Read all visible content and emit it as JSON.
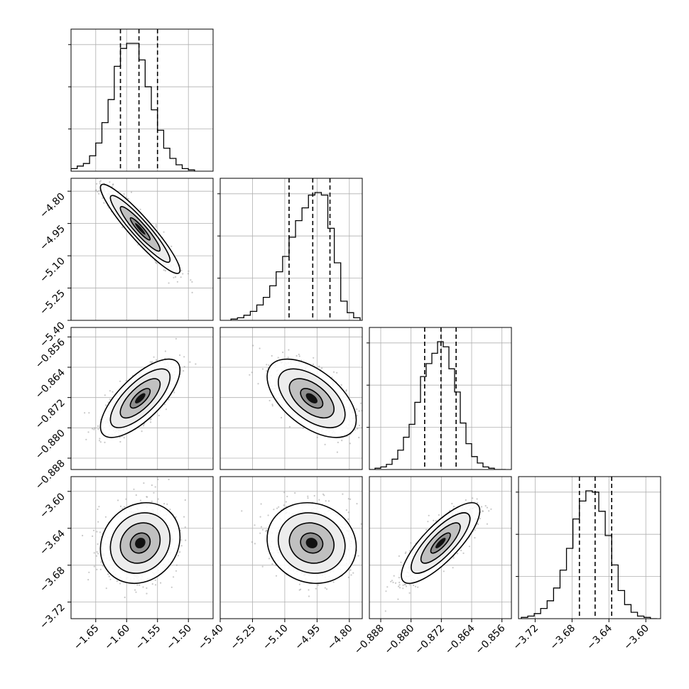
{
  "chart_data": {
    "type": "corner",
    "dims": 4,
    "title": "",
    "params": [
      {
        "range": [
          -1.69,
          -1.46
        ],
        "quantiles": [
          -1.61,
          -1.58,
          -1.55
        ],
        "ticks": [
          -1.65,
          -1.6,
          -1.55,
          -1.5
        ],
        "tick_labels": [
          "−1.65",
          "−1.60",
          "−1.55",
          "−1.50"
        ],
        "hist_bins": [
          -1.69,
          -1.68,
          -1.67,
          -1.66,
          -1.65,
          -1.64,
          -1.63,
          -1.62,
          -1.61,
          -1.6,
          -1.59,
          -1.58,
          -1.57,
          -1.56,
          -1.55,
          -1.54,
          -1.53,
          -1.52,
          -1.51,
          -1.5,
          -1.49
        ],
        "hist_counts": [
          0.02,
          0.04,
          0.06,
          0.12,
          0.22,
          0.38,
          0.56,
          0.82,
          0.96,
          1.0,
          1.0,
          0.87,
          0.66,
          0.48,
          0.32,
          0.18,
          0.1,
          0.05,
          0.02,
          0.01
        ],
        "hist_yticks": [
          0.33,
          0.66,
          0.99
        ]
      },
      {
        "range": [
          -5.4,
          -4.74
        ],
        "quantiles": [
          -5.08,
          -4.97,
          -4.89
        ],
        "ticks": [
          -5.4,
          -5.25,
          -5.1,
          -4.95,
          -4.8
        ],
        "tick_labels": [
          "−5.40",
          "−5.25",
          "−5.10",
          "−4.95",
          "−4.80"
        ],
        "hist_bins": [
          -5.35,
          -5.32,
          -5.29,
          -5.26,
          -5.23,
          -5.2,
          -5.17,
          -5.14,
          -5.11,
          -5.08,
          -5.05,
          -5.02,
          -4.99,
          -4.96,
          -4.93,
          -4.9,
          -4.87,
          -4.84,
          -4.81,
          -4.78,
          -4.75
        ],
        "hist_counts": [
          0.01,
          0.02,
          0.04,
          0.07,
          0.12,
          0.18,
          0.27,
          0.38,
          0.5,
          0.65,
          0.78,
          0.88,
          0.98,
          1.0,
          0.98,
          0.72,
          0.45,
          0.15,
          0.06,
          0.02
        ],
        "hist_yticks": [
          0.33,
          0.66,
          0.99
        ]
      },
      {
        "range": [
          -0.891,
          -0.8535
        ],
        "quantiles": [
          -0.8764,
          -0.8721,
          -0.8681
        ],
        "ticks": [
          -0.888,
          -0.88,
          -0.872,
          -0.864,
          -0.856
        ],
        "tick_labels": [
          "−0.888",
          "−0.880",
          "−0.872",
          "−0.864",
          "−0.856"
        ],
        "hist_bins": [
          -0.891,
          -0.8895,
          -0.888,
          -0.8865,
          -0.885,
          -0.8835,
          -0.882,
          -0.8805,
          -0.879,
          -0.8775,
          -0.876,
          -0.8745,
          -0.873,
          -0.8715,
          -0.87,
          -0.8685,
          -0.867,
          -0.8655,
          -0.864,
          -0.8625,
          -0.861,
          -0.8595,
          -0.858,
          -0.8565,
          -0.855
        ],
        "hist_counts": [
          0.0,
          0.01,
          0.02,
          0.04,
          0.08,
          0.15,
          0.25,
          0.35,
          0.52,
          0.72,
          0.82,
          0.9,
          0.99,
          0.95,
          0.78,
          0.6,
          0.36,
          0.2,
          0.1,
          0.05,
          0.02,
          0.01,
          0.0,
          0.0
        ],
        "hist_yticks": [
          0.33,
          0.66,
          0.99
        ]
      },
      {
        "range": [
          -3.738,
          -3.584
        ],
        "quantiles": [
          -3.672,
          -3.655,
          -3.637
        ],
        "ticks": [
          -3.72,
          -3.68,
          -3.64,
          -3.6
        ],
        "tick_labels": [
          "−3.72",
          "−3.68",
          "−3.64",
          "−3.60"
        ],
        "hist_bins": [
          -3.735,
          -3.728,
          -3.721,
          -3.714,
          -3.707,
          -3.7,
          -3.693,
          -3.686,
          -3.679,
          -3.672,
          -3.665,
          -3.658,
          -3.651,
          -3.644,
          -3.637,
          -3.63,
          -3.623,
          -3.616,
          -3.609,
          -3.602,
          -3.595,
          -3.588
        ],
        "hist_counts": [
          0.01,
          0.02,
          0.04,
          0.08,
          0.14,
          0.24,
          0.38,
          0.55,
          0.78,
          0.92,
          1.0,
          0.99,
          0.84,
          0.65,
          0.42,
          0.22,
          0.11,
          0.05,
          0.02,
          0.01,
          0.0
        ],
        "hist_yticks": [
          0.33,
          0.66,
          0.99
        ]
      }
    ],
    "pairs": [
      {
        "x": 0,
        "y": 1,
        "mean": [
          -1.578,
          -4.975
        ],
        "sd": [
          0.028,
          0.09
        ],
        "rho": -0.93
      },
      {
        "x": 0,
        "y": 2,
        "mean": [
          -1.578,
          -0.8722
        ],
        "sd": [
          0.028,
          0.0045
        ],
        "rho": 0.72
      },
      {
        "x": 1,
        "y": 2,
        "mean": [
          -4.975,
          -0.8722
        ],
        "sd": [
          0.09,
          0.0045
        ],
        "rho": -0.55
      },
      {
        "x": 0,
        "y": 3,
        "mean": [
          -1.578,
          -3.656
        ],
        "sd": [
          0.028,
          0.019
        ],
        "rho": 0.15
      },
      {
        "x": 1,
        "y": 3,
        "mean": [
          -4.975,
          -3.656
        ],
        "sd": [
          0.09,
          0.019
        ],
        "rho": -0.1
      },
      {
        "x": 2,
        "y": 3,
        "mean": [
          -0.8722,
          -3.656
        ],
        "sd": [
          0.0045,
          0.019
        ],
        "rho": 0.8
      }
    ],
    "contour_sigmas": [
      0.5,
      1.0,
      1.5,
      2.0
    ],
    "grid": true,
    "legend": "none"
  }
}
